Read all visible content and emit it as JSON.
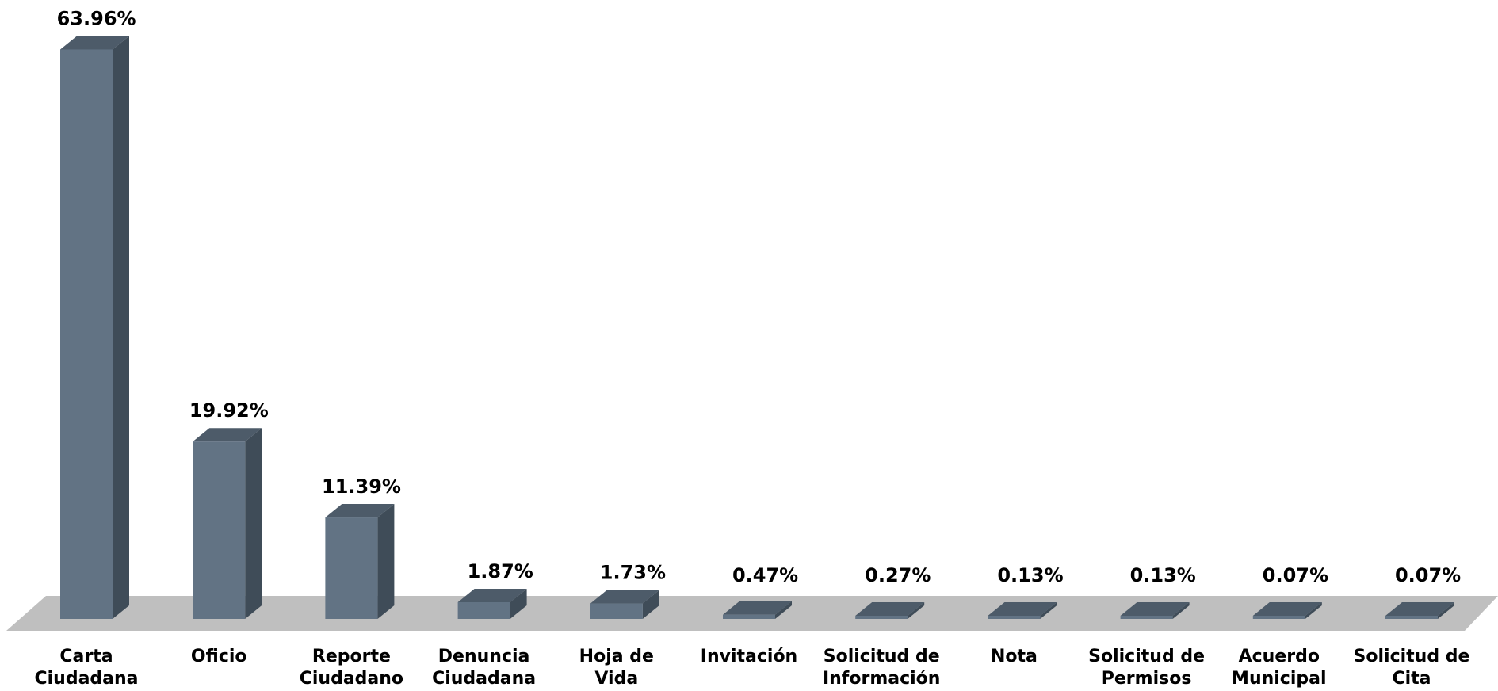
{
  "chart_data": {
    "type": "bar",
    "categories": [
      [
        "Carta",
        "Ciudadana"
      ],
      [
        "Oficio"
      ],
      [
        "Reporte",
        "Ciudadano"
      ],
      [
        "Denuncia",
        "Ciudadana"
      ],
      [
        "Hoja de",
        "Vida"
      ],
      [
        "Invitación"
      ],
      [
        "Solicitud de",
        "Información"
      ],
      [
        "Nota"
      ],
      [
        "Solicitud de",
        "Permisos"
      ],
      [
        "Acuerdo",
        "Municipal"
      ],
      [
        "Solicitud de",
        "Cita"
      ]
    ],
    "values": [
      63.96,
      19.92,
      11.39,
      1.87,
      1.73,
      0.47,
      0.27,
      0.13,
      0.13,
      0.07,
      0.07
    ],
    "data_labels": [
      "63.96%",
      "19.92%",
      "11.39%",
      "1.87%",
      "1.73%",
      "0.47%",
      "0.27%",
      "0.13%",
      "0.13%",
      "0.07%",
      "0.07%"
    ],
    "title": "",
    "xlabel": "",
    "ylabel": "",
    "ylim": [
      0,
      64
    ],
    "grid": false,
    "legend": "none",
    "style": "3d",
    "colors": {
      "bar_front": "#627384",
      "bar_side": "#3F4C58",
      "bar_top": "#4D5B69",
      "floor": "#BFBFBF"
    }
  }
}
